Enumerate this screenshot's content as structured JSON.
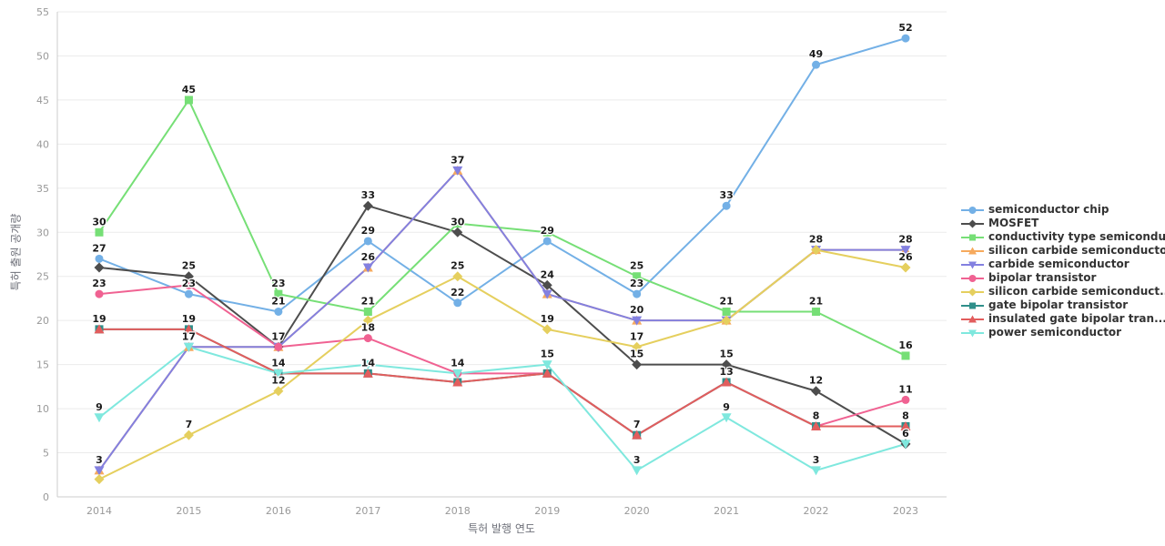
{
  "chart_data": {
    "type": "line",
    "title": "",
    "xlabel": "특허 발행 연도",
    "ylabel": "특허 출원 공개량",
    "x_categories": [
      "2014",
      "2015",
      "2016",
      "2017",
      "2018",
      "2019",
      "2020",
      "2021",
      "2022",
      "2023"
    ],
    "ylim": [
      0,
      55
    ],
    "ytick_interval": 5,
    "grid": true,
    "legend_position": "right",
    "colors": {
      "grid_line": "#ebebeb",
      "axis_line": "#cccccc",
      "tick_label": "#999999",
      "axis_title": "#6e7079",
      "value_label": "#1b1b1b",
      "legend_text": "#333333",
      "background": "#ffffff"
    },
    "series": [
      {
        "name": "semiconductor chip",
        "color": "#73b0e6",
        "symbol": "circle",
        "values": [
          27,
          23,
          21,
          29,
          22,
          29,
          23,
          33,
          49,
          52
        ],
        "label_visible": [
          1,
          1,
          1,
          1,
          1,
          1,
          1,
          1,
          1,
          1
        ]
      },
      {
        "name": "MOSFET",
        "color": "#4d4d4d",
        "symbol": "diamond",
        "values": [
          26,
          25,
          17,
          33,
          30,
          24,
          15,
          15,
          12,
          6
        ],
        "label_visible": [
          0,
          1,
          0,
          1,
          1,
          1,
          1,
          1,
          1,
          1
        ]
      },
      {
        "name": "conductivity type semicondu...",
        "color": "#76df76",
        "symbol": "square",
        "values": [
          30,
          45,
          23,
          21,
          31,
          30,
          25,
          21,
          21,
          16
        ],
        "label_visible": [
          1,
          1,
          1,
          1,
          0,
          0,
          1,
          1,
          1,
          1
        ]
      },
      {
        "name": "silicon carbide semiconductor",
        "color": "#f6a95d",
        "symbol": "triangle-up",
        "values": [
          3,
          17,
          17,
          26,
          37,
          23,
          20,
          20,
          28,
          28
        ],
        "label_visible": [
          0,
          0,
          0,
          0,
          0,
          0,
          0,
          0,
          0,
          0
        ]
      },
      {
        "name": "carbide semiconductor",
        "color": "#8380e0",
        "symbol": "triangle-down",
        "values": [
          3,
          17,
          17,
          26,
          37,
          23,
          20,
          20,
          28,
          28
        ],
        "label_visible": [
          1,
          1,
          0,
          1,
          1,
          0,
          1,
          0,
          0,
          1
        ]
      },
      {
        "name": "bipolar transistor",
        "color": "#f06292",
        "symbol": "circle",
        "values": [
          23,
          24,
          17,
          18,
          14,
          14,
          7,
          13,
          8,
          11
        ],
        "label_visible": [
          1,
          0,
          1,
          1,
          0,
          0,
          0,
          1,
          0,
          1
        ]
      },
      {
        "name": "silicon carbide semiconduct...",
        "color": "#e5cf5e",
        "symbol": "diamond",
        "values": [
          2,
          7,
          12,
          20,
          25,
          19,
          17,
          20,
          28,
          26
        ],
        "label_visible": [
          0,
          1,
          1,
          0,
          1,
          1,
          1,
          0,
          1,
          1
        ]
      },
      {
        "name": "gate bipolar transistor",
        "color": "#2f8f8a",
        "symbol": "square",
        "values": [
          19,
          19,
          14,
          14,
          13,
          14,
          7,
          13,
          8,
          8
        ],
        "label_visible": [
          1,
          1,
          1,
          1,
          0,
          0,
          1,
          0,
          1,
          1
        ]
      },
      {
        "name": "insulated gate bipolar tran...",
        "color": "#e25d5d",
        "symbol": "triangle-up",
        "values": [
          19,
          19,
          14,
          14,
          13,
          14,
          7,
          13,
          8,
          8
        ],
        "label_visible": [
          0,
          0,
          0,
          0,
          0,
          0,
          0,
          0,
          0,
          0
        ]
      },
      {
        "name": "power semiconductor",
        "color": "#7fe8de",
        "symbol": "triangle-down",
        "values": [
          9,
          17,
          14,
          15,
          14,
          15,
          3,
          9,
          3,
          6
        ],
        "label_visible": [
          1,
          0,
          0,
          0,
          1,
          1,
          1,
          1,
          1,
          0
        ]
      }
    ]
  }
}
